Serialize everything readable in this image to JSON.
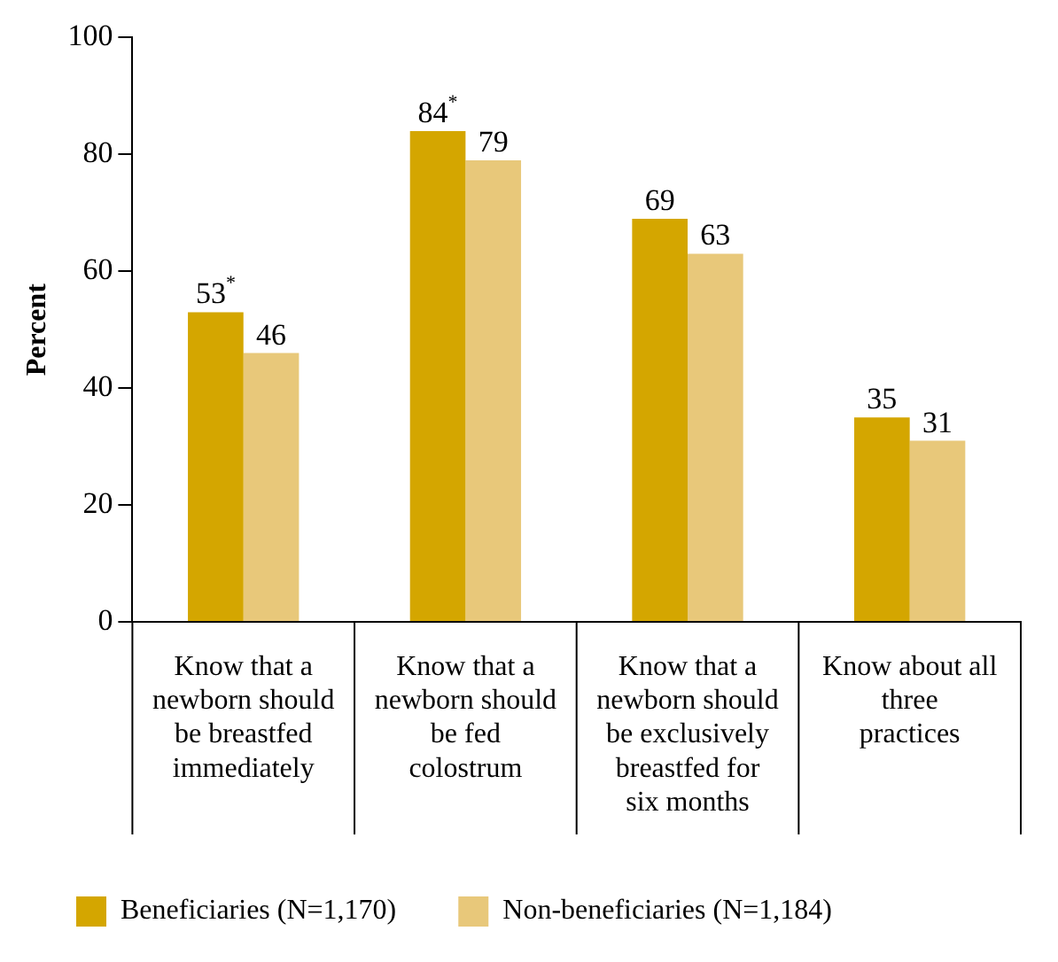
{
  "chart_data": {
    "type": "bar",
    "ylabel": "Percent",
    "categories": [
      "Know that a newborn should be breastfed immediately",
      "Know that a newborn should be fed colostrum",
      "Know that a newborn should be exclusively breastfed for six months",
      "Know about all three practices"
    ],
    "series": [
      {
        "name": "Beneficiaries (N=1,170)",
        "color": "#d4a600",
        "values": [
          53,
          84,
          69,
          35
        ],
        "value_labels": [
          "53$^{*}$",
          "84$^{*}$",
          "69",
          "35"
        ]
      },
      {
        "name": "Non-beneficiaries (N=1,184)",
        "color": "#e8c87a",
        "values": [
          46,
          79,
          63,
          31
        ],
        "value_labels": [
          "46",
          "79",
          "63",
          "31"
        ]
      }
    ],
    "ylim": [
      0,
      100
    ],
    "yticks": [
      0,
      20,
      40,
      60,
      80,
      100
    ],
    "grid": false,
    "legend": "bottom"
  }
}
